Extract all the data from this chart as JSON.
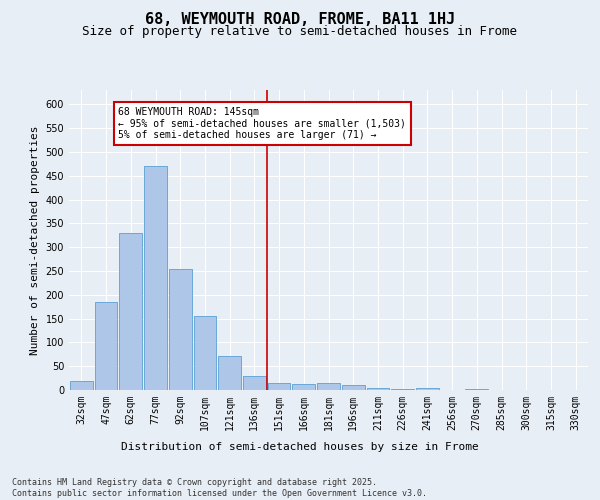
{
  "title": "68, WEYMOUTH ROAD, FROME, BA11 1HJ",
  "subtitle": "Size of property relative to semi-detached houses in Frome",
  "xlabel": "Distribution of semi-detached houses by size in Frome",
  "ylabel": "Number of semi-detached properties",
  "categories": [
    "32sqm",
    "47sqm",
    "62sqm",
    "77sqm",
    "92sqm",
    "107sqm",
    "121sqm",
    "136sqm",
    "151sqm",
    "166sqm",
    "181sqm",
    "196sqm",
    "211sqm",
    "226sqm",
    "241sqm",
    "256sqm",
    "270sqm",
    "285sqm",
    "300sqm",
    "315sqm",
    "330sqm"
  ],
  "values": [
    18,
    185,
    330,
    470,
    255,
    155,
    72,
    30,
    15,
    13,
    14,
    10,
    4,
    3,
    4,
    1,
    2,
    1,
    0,
    1,
    0
  ],
  "bar_color": "#aec6e8",
  "bar_edge_color": "#5a9fd4",
  "vline_index": 8,
  "vline_color": "#cc0000",
  "annotation_text": "68 WEYMOUTH ROAD: 145sqm\n← 95% of semi-detached houses are smaller (1,503)\n5% of semi-detached houses are larger (71) →",
  "annotation_box_color": "#ffffff",
  "annotation_box_edge_color": "#cc0000",
  "ylim": [
    0,
    630
  ],
  "yticks": [
    0,
    50,
    100,
    150,
    200,
    250,
    300,
    350,
    400,
    450,
    500,
    550,
    600
  ],
  "footnote": "Contains HM Land Registry data © Crown copyright and database right 2025.\nContains public sector information licensed under the Open Government Licence v3.0.",
  "bg_color": "#e8eef5",
  "title_fontsize": 11,
  "subtitle_fontsize": 9,
  "axis_label_fontsize": 8,
  "tick_fontsize": 7,
  "annotation_fontsize": 7,
  "footnote_fontsize": 6
}
